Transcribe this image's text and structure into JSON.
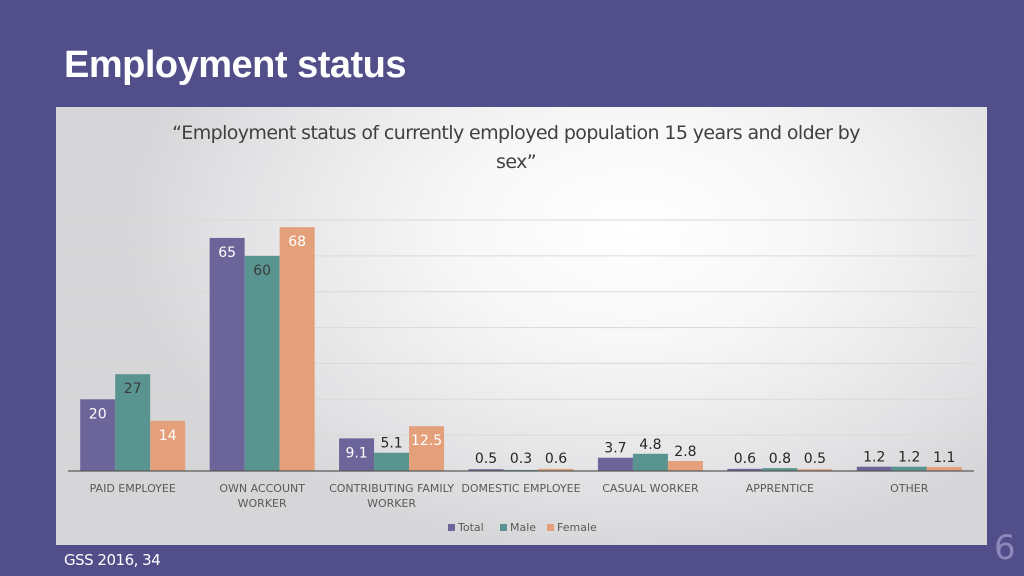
{
  "slide": {
    "title": "Employment status",
    "source": "GSS 2016, 34",
    "page_number": "6"
  },
  "colors": {
    "background": "#524e8a",
    "series": [
      "#6b6599",
      "#5a9490",
      "#e3a07a"
    ]
  },
  "chart_data": {
    "type": "bar",
    "title": "“Employment status of currently employed population 15 years and older by sex”",
    "title_lines": [
      "“Employment status of currently employed population 15 years and older by",
      "sex”"
    ],
    "categories": [
      "PAID EMPLOYEE",
      "OWN ACCOUNT WORKER",
      "CONTRIBUTING FAMILY WORKER",
      "DOMESTIC EMPLOYEE",
      "CASUAL WORKER",
      "APPRENTICE",
      "OTHER"
    ],
    "category_lines": [
      [
        "PAID EMPLOYEE"
      ],
      [
        "OWN ACCOUNT",
        "WORKER"
      ],
      [
        "CONTRIBUTING FAMILY",
        "WORKER"
      ],
      [
        "DOMESTIC EMPLOYEE"
      ],
      [
        "CASUAL WORKER"
      ],
      [
        "APPRENTICE"
      ],
      [
        "OTHER"
      ]
    ],
    "series": [
      {
        "name": "Total",
        "color": "#6b6599",
        "values": [
          20,
          65,
          9.1,
          0.5,
          3.7,
          0.6,
          1.2
        ]
      },
      {
        "name": "Male",
        "color": "#5a9490",
        "values": [
          27,
          60,
          5.1,
          0.3,
          4.8,
          0.8,
          1.2
        ]
      },
      {
        "name": "Female",
        "color": "#e3a07a",
        "values": [
          14,
          68,
          12.5,
          0.6,
          2.8,
          0.5,
          1.1
        ]
      }
    ],
    "ylim": [
      0,
      70
    ],
    "grid": true,
    "legend": "bottom",
    "xlabel": "",
    "ylabel": ""
  }
}
